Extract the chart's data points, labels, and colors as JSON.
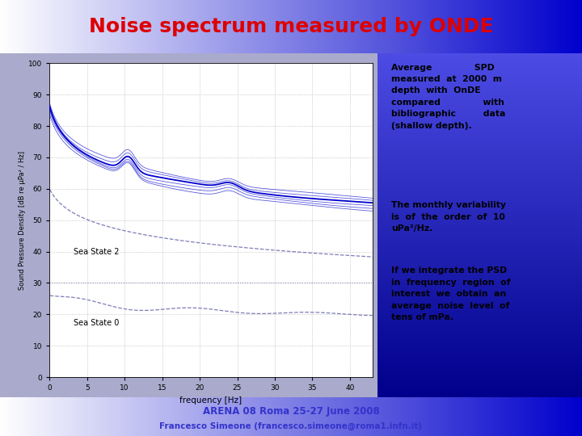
{
  "title": "Noise spectrum measured by ONDE",
  "title_color": "#dd0000",
  "header_grad_left": "#ffffff",
  "header_grad_right": "#0000cc",
  "right_panel_grad_left": "#ffffff",
  "right_panel_grad_right": "#0000bb",
  "footer_grad_left": "#ffffff",
  "footer_grad_right": "#0000cc",
  "plot_bg": "#ffffff",
  "outer_bg": "#aaaacc",
  "xlabel": "frequency [Hz]",
  "ylabel": "Sound Pressure Density [dB re μPa² / Hz]",
  "xlim": [
    0,
    43
  ],
  "ylim": [
    0,
    100
  ],
  "yticks": [
    0,
    10,
    20,
    30,
    40,
    50,
    60,
    70,
    80,
    90,
    100
  ],
  "xticks": [
    0,
    5,
    10,
    15,
    20,
    25,
    30,
    35,
    40
  ],
  "main_line_color": "#0000cc",
  "dashed_line_color": "#6666aa",
  "sea_state2_label": "Sea State 2",
  "sea_state0_label": "Sea State 0",
  "footer_text1": "ARENA 08 Roma 25-27 June 2008",
  "footer_text2": "Francesco Simeone (francesco.simeone@roma1.infn.it)",
  "footer_text_color": "#3333cc"
}
